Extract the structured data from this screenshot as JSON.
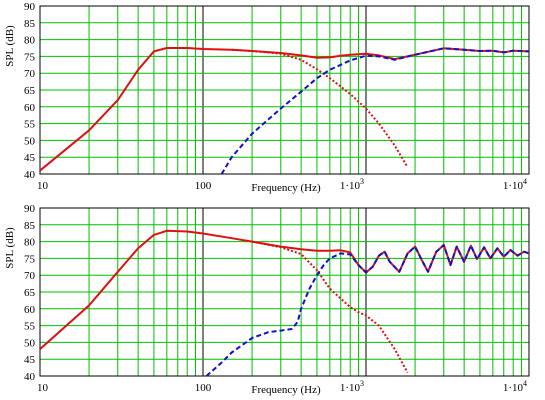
{
  "chart_data": [
    {
      "type": "line",
      "title": "",
      "xlabel": "Frequency (Hz)",
      "ylabel": "SPL (dB)",
      "x_scale": "log",
      "xlim": [
        10,
        10000
      ],
      "ylim": [
        40,
        90
      ],
      "grid": true,
      "x_tick_labels": [
        {
          "value": 10,
          "label": "10"
        },
        {
          "value": 100,
          "label": "100"
        },
        {
          "value": 1000,
          "base": "1·10",
          "exp": "3"
        },
        {
          "value": 10000,
          "base": "1·10",
          "exp": "4"
        }
      ],
      "y_ticks": [
        40,
        45,
        50,
        55,
        60,
        65,
        70,
        75,
        80,
        85,
        90
      ],
      "colors": {
        "grid": "#00c000",
        "decade": "#000000",
        "red": "#dd1111",
        "blue": "#1111cc"
      },
      "series": [
        {
          "color": "red",
          "dash": "solid",
          "x": [
            10,
            20,
            30,
            40,
            50,
            60,
            80,
            100,
            150,
            200,
            300,
            400,
            500,
            600,
            700,
            800,
            1000,
            1200,
            1500,
            2000,
            3000,
            4000,
            5000,
            6000,
            7000,
            8000,
            10000
          ],
          "y": [
            41,
            53,
            62,
            71,
            76.5,
            77.5,
            77.5,
            77.2,
            77,
            76.6,
            76,
            75.3,
            74.6,
            74.7,
            75.2,
            75.5,
            75.8,
            75.3,
            74.2,
            75.5,
            77.4,
            77,
            76.6,
            76.7,
            76.2,
            76.7,
            76.5
          ]
        },
        {
          "color": "red",
          "dash": "dotted",
          "x": [
            150,
            200,
            300,
            400,
            500,
            600,
            700,
            800,
            1000,
            1200,
            1500,
            1800
          ],
          "y": [
            77,
            76.6,
            75.8,
            74,
            71.2,
            68.5,
            66,
            63.8,
            59.5,
            55,
            48.5,
            42
          ]
        },
        {
          "color": "blue",
          "dash": "dashed",
          "x": [
            130,
            150,
            200,
            300,
            400,
            500,
            600,
            700,
            800,
            1000,
            1200,
            1500,
            2000,
            3000,
            4000,
            5000,
            6000,
            7000,
            8000,
            10000
          ],
          "y": [
            40,
            45,
            52,
            59.5,
            64.5,
            68.5,
            71,
            72.5,
            73.8,
            75.2,
            75,
            74,
            75.5,
            77.4,
            77,
            76.6,
            76.7,
            76.2,
            76.7,
            76.5
          ]
        }
      ]
    },
    {
      "type": "line",
      "title": "",
      "xlabel": "Frequency (Hz)",
      "ylabel": "SPL (dB)",
      "x_scale": "log",
      "xlim": [
        10,
        10000
      ],
      "ylim": [
        40,
        90
      ],
      "grid": true,
      "x_tick_labels": [
        {
          "value": 10,
          "label": "10"
        },
        {
          "value": 100,
          "label": "100"
        },
        {
          "value": 1000,
          "base": "1·10",
          "exp": "3"
        },
        {
          "value": 10000,
          "base": "1·10",
          "exp": "4"
        }
      ],
      "y_ticks": [
        40,
        45,
        50,
        55,
        60,
        65,
        70,
        75,
        80,
        85,
        90
      ],
      "colors": {
        "grid": "#00c000",
        "decade": "#000000",
        "red": "#dd1111",
        "blue": "#1111cc"
      },
      "series": [
        {
          "color": "red",
          "dash": "solid",
          "x": [
            10,
            20,
            30,
            40,
            50,
            60,
            80,
            100,
            150,
            200,
            300,
            400,
            500,
            600,
            700,
            800,
            900,
            1000,
            1100,
            1200,
            1300,
            1400,
            1600,
            1800,
            2000,
            2200,
            2400,
            2700,
            3000,
            3300,
            3600,
            4000,
            4400,
            4800,
            5300,
            5800,
            6400,
            7000,
            7700,
            8500,
            9300,
            10000
          ],
          "y": [
            48,
            61,
            71,
            78,
            82,
            83.2,
            83,
            82.4,
            81,
            80,
            78.5,
            77.7,
            77.3,
            77.3,
            77.4,
            76.8,
            73,
            70.8,
            72.5,
            75.8,
            77,
            74,
            71,
            76.5,
            78.5,
            74.5,
            71,
            77,
            79,
            73,
            78.5,
            74,
            78.8,
            74.8,
            78.3,
            75,
            78,
            75.5,
            77.5,
            75.8,
            77,
            76.5
          ]
        },
        {
          "color": "red",
          "dash": "dotted",
          "x": [
            200,
            300,
            400,
            500,
            600,
            700,
            800,
            900,
            1000,
            1200,
            1500,
            1800
          ],
          "y": [
            80,
            78.3,
            76.3,
            71.5,
            66,
            63,
            60.5,
            59,
            58,
            55,
            48,
            41
          ]
        },
        {
          "color": "blue",
          "dash": "dashed",
          "x": [
            105,
            130,
            150,
            200,
            250,
            300,
            350,
            380,
            400,
            450,
            500,
            550,
            600,
            700,
            800,
            900,
            1000,
            1100,
            1200,
            1300,
            1400,
            1600,
            1800,
            2000,
            2200,
            2400,
            2700,
            3000,
            3300,
            3600,
            4000,
            4400,
            4800,
            5300,
            5800,
            6400,
            7000,
            7700,
            8500,
            9300,
            10000
          ],
          "y": [
            40,
            44,
            47,
            51.3,
            53,
            53.5,
            54,
            56,
            60,
            66,
            70,
            73,
            75,
            76.5,
            76.2,
            73,
            70.8,
            72.5,
            75.8,
            77,
            74,
            71,
            76.5,
            78.5,
            74.5,
            71,
            77,
            79,
            73,
            78.5,
            74,
            78.8,
            74.8,
            78.3,
            75,
            78,
            75.5,
            77.5,
            75.8,
            77,
            76.5
          ]
        }
      ]
    }
  ]
}
